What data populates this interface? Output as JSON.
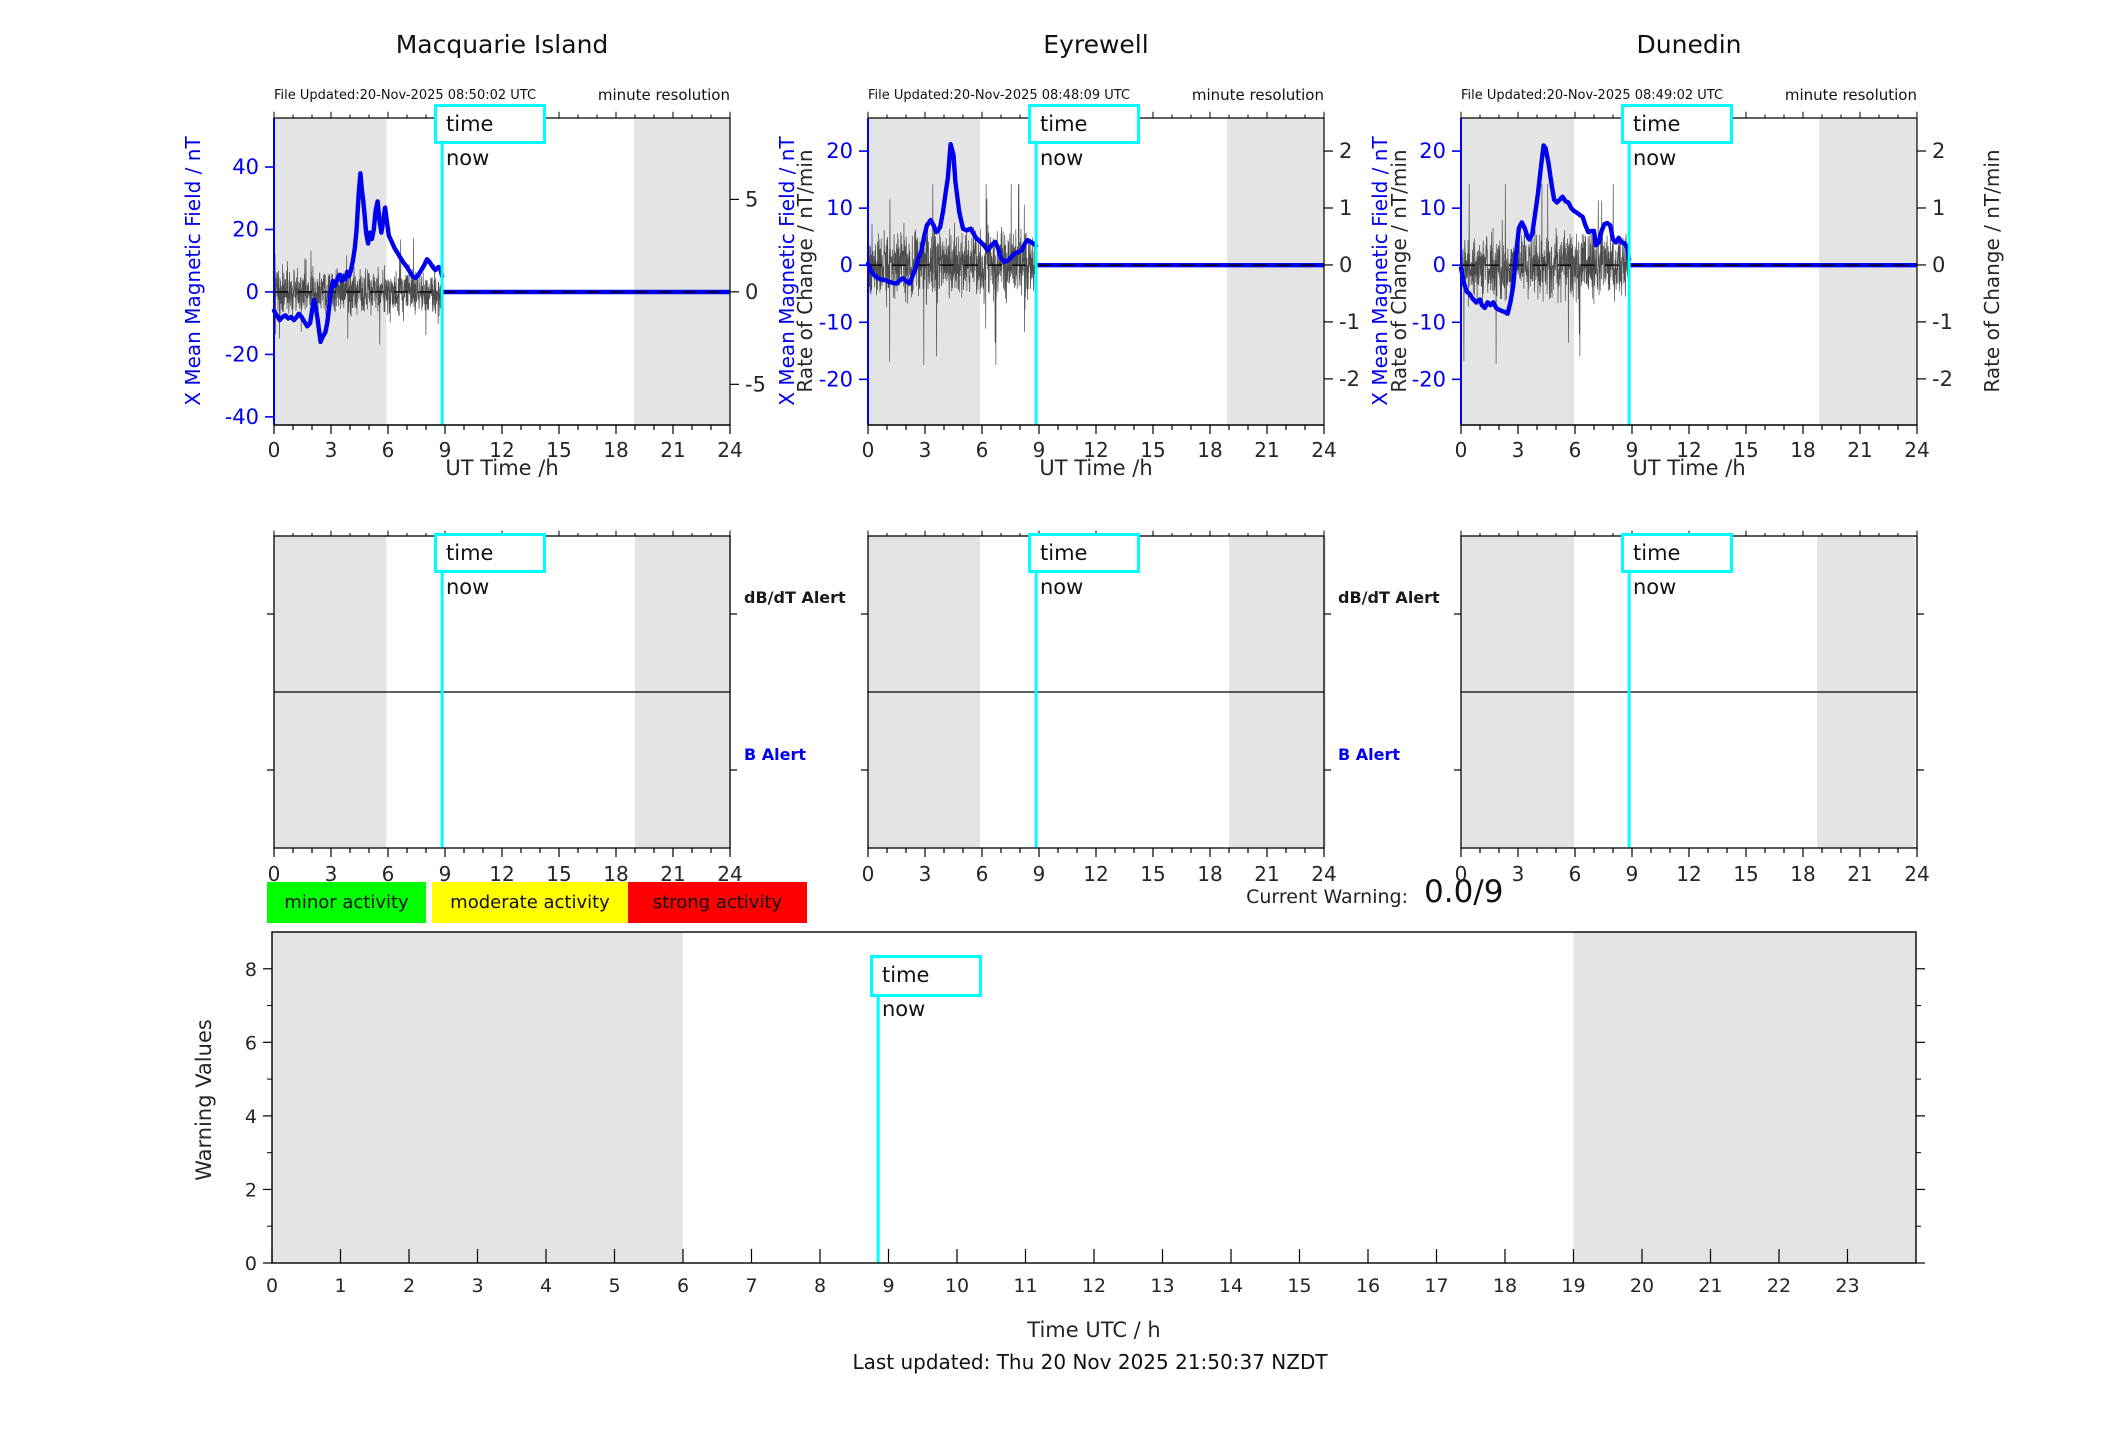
{
  "colors": {
    "blue": "#0000ee",
    "cyan": "#00ffff",
    "night_band": "#e4e4e4",
    "noise": "#4d4d4d",
    "axis_text": "#262626",
    "legend_green": "#00ff00",
    "legend_yellow": "#ffff00",
    "legend_red": "#ff0000"
  },
  "alert_panels": {
    "db_dt_label": "dB/dT Alert",
    "b_label": "B Alert"
  },
  "legend": {
    "items": [
      {
        "label": "minor activity",
        "color": "#00ff00"
      },
      {
        "label": "moderate activity",
        "color": "#ffff00"
      },
      {
        "label": "strong activity",
        "color": "#ff0000"
      }
    ]
  },
  "current_warning": {
    "label": "Current Warning:",
    "value": "0.0/9"
  },
  "footer": {
    "last_updated": "Last updated: Thu 20 Nov 2025 21:50:37 NZDT"
  },
  "chart_data": [
    {
      "type": "line",
      "title": "Macquarie Island",
      "file_updated": "File Updated:20-Nov-2025 08:50:02 UTC",
      "resolution_note": "minute resolution",
      "xlabel": "UT Time /h",
      "ylabel": "X Mean Magnetic Field / nT",
      "y2label": "Rate of Change / nT/min",
      "xlim": [
        0,
        24
      ],
      "xticks": [
        0,
        3,
        6,
        9,
        12,
        15,
        18,
        21,
        24
      ],
      "ylim": [
        -42.6,
        55.7
      ],
      "yticks": [
        40,
        20,
        0,
        -20,
        -40
      ],
      "y2lim": [
        -7.2,
        9.4
      ],
      "y2ticks": [
        5,
        0,
        -5
      ],
      "night_bands": [
        [
          0,
          5.92
        ],
        [
          18.95,
          24
        ]
      ],
      "zero_line": 0,
      "time_now": {
        "label": "time now",
        "x": 8.85
      },
      "series": [
        {
          "name": "X mean magnetic field measured",
          "color": "#0000ee",
          "points": [
            [
              0,
              -6
            ],
            [
              0.15,
              -7.5
            ],
            [
              0.3,
              -9
            ],
            [
              0.45,
              -8
            ],
            [
              0.6,
              -7.5
            ],
            [
              0.75,
              -8.5
            ],
            [
              0.9,
              -8
            ],
            [
              1.05,
              -9
            ],
            [
              1.2,
              -8
            ],
            [
              1.3,
              -7
            ],
            [
              1.45,
              -8
            ],
            [
              1.6,
              -9.5
            ],
            [
              1.75,
              -11
            ],
            [
              1.9,
              -10
            ],
            [
              2.0,
              -6
            ],
            [
              2.1,
              -2.5
            ],
            [
              2.2,
              -5
            ],
            [
              2.3,
              -9
            ],
            [
              2.45,
              -16
            ],
            [
              2.55,
              -14.5
            ],
            [
              2.7,
              -13
            ],
            [
              2.8,
              -10
            ],
            [
              2.9,
              -5
            ],
            [
              3.0,
              0.5
            ],
            [
              3.1,
              3.5
            ],
            [
              3.2,
              2
            ],
            [
              3.35,
              4.5
            ],
            [
              3.45,
              5.5
            ],
            [
              3.55,
              3.5
            ],
            [
              3.65,
              5
            ],
            [
              3.75,
              4
            ],
            [
              3.85,
              6.5
            ],
            [
              3.95,
              5
            ],
            [
              4.05,
              7
            ],
            [
              4.15,
              10
            ],
            [
              4.25,
              14
            ],
            [
              4.35,
              20
            ],
            [
              4.45,
              31
            ],
            [
              4.55,
              38
            ],
            [
              4.62,
              33
            ],
            [
              4.7,
              29
            ],
            [
              4.78,
              24
            ],
            [
              4.85,
              19
            ],
            [
              4.95,
              15.5
            ],
            [
              5.05,
              19
            ],
            [
              5.15,
              17
            ],
            [
              5.25,
              20
            ],
            [
              5.35,
              26
            ],
            [
              5.45,
              29
            ],
            [
              5.55,
              23
            ],
            [
              5.65,
              19
            ],
            [
              5.75,
              23
            ],
            [
              5.85,
              27
            ],
            [
              5.95,
              22
            ],
            [
              6.05,
              18
            ],
            [
              6.2,
              16
            ],
            [
              6.35,
              14
            ],
            [
              6.5,
              12.5
            ],
            [
              6.65,
              11
            ],
            [
              6.8,
              9.5
            ],
            [
              7.0,
              8
            ],
            [
              7.15,
              6.5
            ],
            [
              7.3,
              5
            ],
            [
              7.45,
              4.5
            ],
            [
              7.6,
              5.5
            ],
            [
              7.75,
              7
            ],
            [
              7.9,
              8.5
            ],
            [
              8.05,
              10.5
            ],
            [
              8.2,
              9.5
            ],
            [
              8.35,
              8
            ],
            [
              8.5,
              7
            ],
            [
              8.65,
              8
            ],
            [
              8.75,
              7.5
            ],
            [
              8.85,
              5
            ]
          ]
        },
        {
          "name": "forecast flat",
          "color": "#0000ee",
          "points": [
            [
              8.85,
              0
            ],
            [
              24,
              0
            ]
          ]
        }
      ],
      "noise_series": {
        "name": "rate of change minute data",
        "axis": "y2",
        "seed": 3,
        "sigma": 0.7,
        "spike": 3.0,
        "x_range": [
          0,
          8.85
        ]
      }
    },
    {
      "type": "line",
      "title": "Eyrewell",
      "file_updated": "File Updated:20-Nov-2025 08:48:09 UTC",
      "resolution_note": "minute resolution",
      "xlabel": "UT Time /h",
      "ylabel": "X Mean Magnetic Field / nT",
      "y2label": "Rate of Change / nT/min",
      "xlim": [
        0,
        24
      ],
      "xticks": [
        0,
        3,
        6,
        9,
        12,
        15,
        18,
        21,
        24
      ],
      "ylim": [
        -28.0,
        25.8
      ],
      "yticks": [
        20,
        10,
        0,
        -10,
        -20
      ],
      "y2lim": [
        -2.81,
        2.58
      ],
      "y2ticks": [
        2,
        1,
        0,
        -1,
        -2
      ],
      "night_bands": [
        [
          0,
          5.9
        ],
        [
          18.9,
          24
        ]
      ],
      "zero_line": 0,
      "time_now": {
        "label": "time now",
        "x": 8.85
      },
      "series": [
        {
          "name": "X mean magnetic field measured",
          "color": "#0000ee",
          "points": [
            [
              0,
              0.3
            ],
            [
              0.15,
              -1
            ],
            [
              0.3,
              -1.6
            ],
            [
              0.5,
              -2.2
            ],
            [
              0.7,
              -2.5
            ],
            [
              0.9,
              -2.6
            ],
            [
              1.1,
              -2.9
            ],
            [
              1.3,
              -3.1
            ],
            [
              1.5,
              -3.2
            ],
            [
              1.7,
              -2.5
            ],
            [
              1.85,
              -2.3
            ],
            [
              2.0,
              -2.8
            ],
            [
              2.2,
              -3.2
            ],
            [
              2.35,
              -1.8
            ],
            [
              2.5,
              -0.6
            ],
            [
              2.65,
              1.2
            ],
            [
              2.8,
              2.3
            ],
            [
              2.95,
              5
            ],
            [
              3.1,
              7
            ],
            [
              3.3,
              7.9
            ],
            [
              3.45,
              7
            ],
            [
              3.6,
              5.8
            ],
            [
              3.7,
              6.2
            ],
            [
              3.8,
              6.7
            ],
            [
              3.95,
              9.5
            ],
            [
              4.1,
              13
            ],
            [
              4.2,
              15.2
            ],
            [
              4.35,
              21.2
            ],
            [
              4.5,
              19.3
            ],
            [
              4.6,
              14.6
            ],
            [
              4.8,
              9.4
            ],
            [
              5.0,
              6.4
            ],
            [
              5.2,
              6.1
            ],
            [
              5.4,
              6.4
            ],
            [
              5.55,
              5.6
            ],
            [
              5.7,
              4.7
            ],
            [
              5.9,
              4.2
            ],
            [
              6.1,
              3.5
            ],
            [
              6.3,
              2.6
            ],
            [
              6.5,
              3.5
            ],
            [
              6.7,
              4.1
            ],
            [
              6.85,
              2.9
            ],
            [
              7.0,
              1.2
            ],
            [
              7.2,
              0.6
            ],
            [
              7.4,
              0.9
            ],
            [
              7.55,
              1.5
            ],
            [
              7.7,
              2.0
            ],
            [
              7.9,
              2.3
            ],
            [
              8.1,
              2.6
            ],
            [
              8.25,
              3.8
            ],
            [
              8.4,
              4.4
            ],
            [
              8.55,
              4.1
            ],
            [
              8.7,
              3.8
            ],
            [
              8.85,
              3.4
            ]
          ]
        },
        {
          "name": "forecast flat",
          "color": "#0000ee",
          "points": [
            [
              8.85,
              0
            ],
            [
              24,
              0
            ]
          ]
        }
      ],
      "noise_series": {
        "name": "rate of change minute data",
        "axis": "y2",
        "seed": 8,
        "sigma": 0.35,
        "spike": 1.9,
        "x_range": [
          0,
          8.85
        ]
      }
    },
    {
      "type": "line",
      "title": "Dunedin",
      "file_updated": "File Updated:20-Nov-2025 08:49:02 UTC",
      "resolution_note": "minute resolution",
      "xlabel": "UT Time /h",
      "ylabel": "X Mean Magnetic Field / nT",
      "y2label": "Rate of Change / nT/min",
      "xlim": [
        0,
        24
      ],
      "xticks": [
        0,
        3,
        6,
        9,
        12,
        15,
        18,
        21,
        24
      ],
      "ylim": [
        -28.0,
        25.8
      ],
      "yticks": [
        20,
        10,
        0,
        -10,
        -20
      ],
      "y2lim": [
        -2.81,
        2.58
      ],
      "y2ticks": [
        2,
        1,
        0,
        -1,
        -2
      ],
      "night_bands": [
        [
          0,
          5.95
        ],
        [
          18.85,
          24
        ]
      ],
      "zero_line": 0,
      "time_now": {
        "label": "time now",
        "x": 8.85
      },
      "series": [
        {
          "name": "X mean magnetic field measured",
          "color": "#0000ee",
          "points": [
            [
              0,
              -0.5
            ],
            [
              0.15,
              -3
            ],
            [
              0.3,
              -4.6
            ],
            [
              0.45,
              -5
            ],
            [
              0.6,
              -5.8
            ],
            [
              0.8,
              -6.5
            ],
            [
              1.0,
              -6
            ],
            [
              1.1,
              -7
            ],
            [
              1.25,
              -7.5
            ],
            [
              1.4,
              -6.5
            ],
            [
              1.55,
              -7
            ],
            [
              1.7,
              -6.5
            ],
            [
              1.85,
              -7.5
            ],
            [
              2.0,
              -7.8
            ],
            [
              2.15,
              -8
            ],
            [
              2.3,
              -8.2
            ],
            [
              2.45,
              -8.5
            ],
            [
              2.6,
              -6.5
            ],
            [
              2.75,
              -3.5
            ],
            [
              2.9,
              2
            ],
            [
              3.05,
              6.5
            ],
            [
              3.2,
              7.5
            ],
            [
              3.35,
              6.5
            ],
            [
              3.5,
              5
            ],
            [
              3.6,
              4.5
            ],
            [
              3.75,
              5.5
            ],
            [
              3.9,
              9
            ],
            [
              4.05,
              12.5
            ],
            [
              4.2,
              17
            ],
            [
              4.35,
              21
            ],
            [
              4.45,
              20.5
            ],
            [
              4.6,
              18
            ],
            [
              4.75,
              14.5
            ],
            [
              4.9,
              11.5
            ],
            [
              5.05,
              11
            ],
            [
              5.2,
              11.5
            ],
            [
              5.35,
              12
            ],
            [
              5.5,
              11.2
            ],
            [
              5.65,
              11
            ],
            [
              5.8,
              10
            ],
            [
              5.95,
              9.5
            ],
            [
              6.1,
              9.2
            ],
            [
              6.25,
              8.8
            ],
            [
              6.4,
              8.5
            ],
            [
              6.55,
              7
            ],
            [
              6.7,
              5.8
            ],
            [
              6.85,
              6
            ],
            [
              7.0,
              6
            ],
            [
              7.1,
              3.5
            ],
            [
              7.25,
              4
            ],
            [
              7.4,
              6
            ],
            [
              7.55,
              7.2
            ],
            [
              7.7,
              7.4
            ],
            [
              7.85,
              7
            ],
            [
              8.0,
              4.5
            ],
            [
              8.15,
              4
            ],
            [
              8.3,
              4.8
            ],
            [
              8.45,
              4
            ],
            [
              8.6,
              3.9
            ],
            [
              8.75,
              3
            ],
            [
              8.85,
              1
            ]
          ]
        },
        {
          "name": "forecast flat",
          "color": "#0000ee",
          "points": [
            [
              8.85,
              0
            ],
            [
              24,
              0
            ]
          ]
        }
      ],
      "noise_series": {
        "name": "rate of change minute data",
        "axis": "y2",
        "seed": 5,
        "sigma": 0.35,
        "spike": 1.9,
        "x_range": [
          0,
          8.85
        ]
      }
    },
    {
      "type": "line",
      "title": "Warning Values",
      "ylabel": "Warning Values",
      "xlabel": "Time UTC / h",
      "xlim": [
        0,
        24
      ],
      "xticks": [
        0,
        1,
        2,
        3,
        4,
        5,
        6,
        7,
        8,
        9,
        10,
        11,
        12,
        13,
        14,
        15,
        16,
        17,
        18,
        19,
        20,
        21,
        22,
        23
      ],
      "ylim": [
        0,
        9
      ],
      "yticks": [
        0,
        2,
        4,
        6,
        8
      ],
      "yticks_minor": [
        1,
        3,
        5,
        7
      ],
      "night_bands": [
        [
          0,
          6
        ],
        [
          19,
          24
        ]
      ],
      "time_now": {
        "label": "time now",
        "x": 8.85
      },
      "series": []
    }
  ]
}
